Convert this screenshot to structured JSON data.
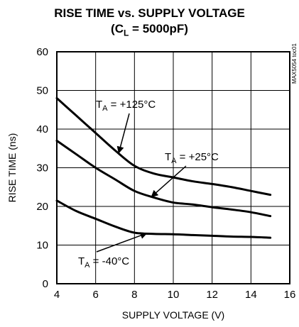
{
  "chart_data": {
    "type": "line",
    "title": "RISE TIME vs. SUPPLY VOLTAGE",
    "subtitle": {
      "prefix": "(C",
      "sub": "L",
      "suffix": " = 5000pF)"
    },
    "xlabel": "SUPPLY VOLTAGE (V)",
    "ylabel": "RISE TIME (ns)",
    "xlim": [
      4,
      16
    ],
    "ylim": [
      0,
      60
    ],
    "xticks": [
      4,
      6,
      8,
      10,
      12,
      14,
      16
    ],
    "yticks": [
      0,
      10,
      20,
      30,
      40,
      50,
      60
    ],
    "grid": true,
    "legend": "none",
    "watermark": "MAX5054 toc01",
    "series": [
      {
        "x": [
          4,
          5,
          6,
          7,
          8,
          9,
          10,
          11,
          12,
          13,
          14,
          15
        ],
        "y": [
          48,
          43.5,
          39,
          34.5,
          30.5,
          28.5,
          27.5,
          26.5,
          25.8,
          25,
          24,
          23
        ]
      },
      {
        "x": [
          4,
          5,
          6,
          7,
          8,
          9,
          10,
          11,
          12,
          13,
          14,
          15
        ],
        "y": [
          37,
          33.5,
          30,
          27,
          24,
          22.3,
          21,
          20.5,
          19.8,
          19.2,
          18.5,
          17.5
        ]
      },
      {
        "x": [
          4,
          5,
          6,
          7,
          8,
          9,
          10,
          11,
          12,
          13,
          14,
          15
        ],
        "y": [
          21.5,
          18.8,
          16.8,
          14.8,
          13.2,
          12.9,
          12.8,
          12.6,
          12.4,
          12.2,
          12.1,
          11.9
        ]
      }
    ],
    "annotations": [
      {
        "prefix": "T",
        "sub": "A",
        "suffix": " = +125°C",
        "arrow_to": [
          7.2,
          34
        ]
      },
      {
        "prefix": "T",
        "sub": "A",
        "suffix": " = +25°C",
        "arrow_to": [
          8.9,
          22.6
        ]
      },
      {
        "prefix": "T",
        "sub": "A",
        "suffix": " = -40°C",
        "arrow_to": [
          8.6,
          13.0
        ]
      }
    ]
  }
}
